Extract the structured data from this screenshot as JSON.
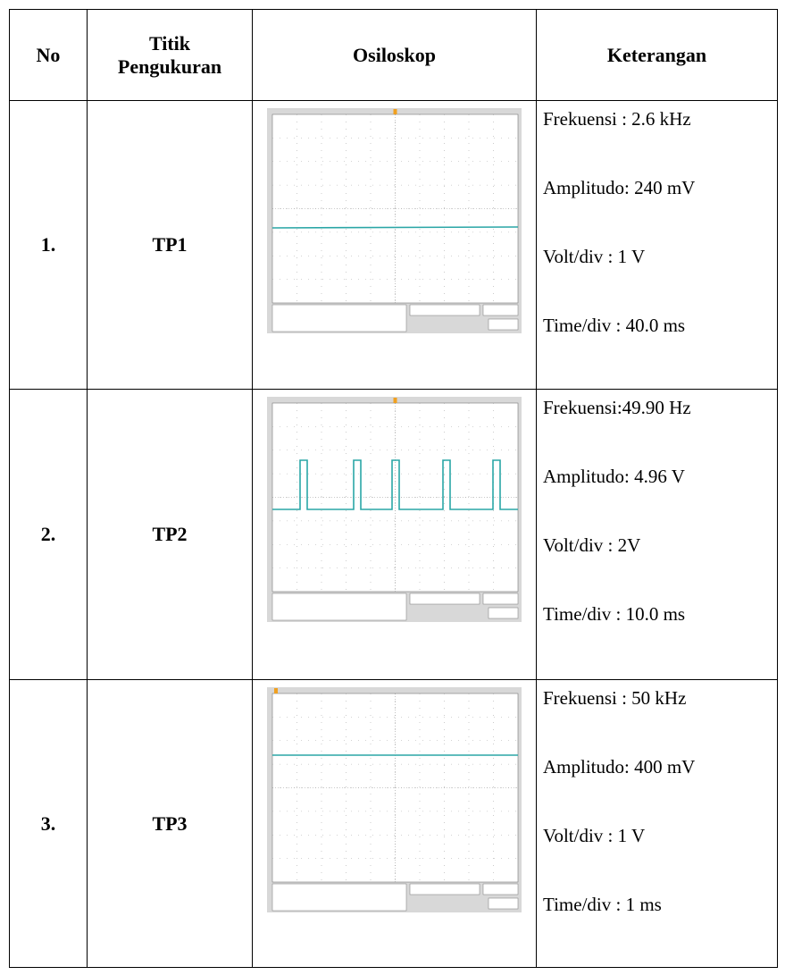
{
  "table": {
    "headers": [
      "No",
      "Titik Pengukuran",
      "Osiloskop",
      "Keterangan"
    ],
    "rows": [
      {
        "no": "1.",
        "point": "TP1",
        "notes": [
          "Frekuensi : 2.6 kHz",
          "Amplitudo: 240 mV",
          "Volt/div : 1 V",
          "Time/div : 40.0 ms"
        ]
      },
      {
        "no": "2.",
        "point": "TP2",
        "notes": [
          "Frekuensi:49.90 Hz",
          "Amplitudo: 4.96 V",
          "Volt/div : 2V",
          "Time/div : 10.0 ms"
        ]
      },
      {
        "no": "3.",
        "point": "TP3",
        "notes": [
          "Frekuensi : 50 kHz",
          "Amplitudo: 400 mV",
          "Volt/div : 1 V",
          "Time/div : 1 ms"
        ]
      }
    ]
  }
}
